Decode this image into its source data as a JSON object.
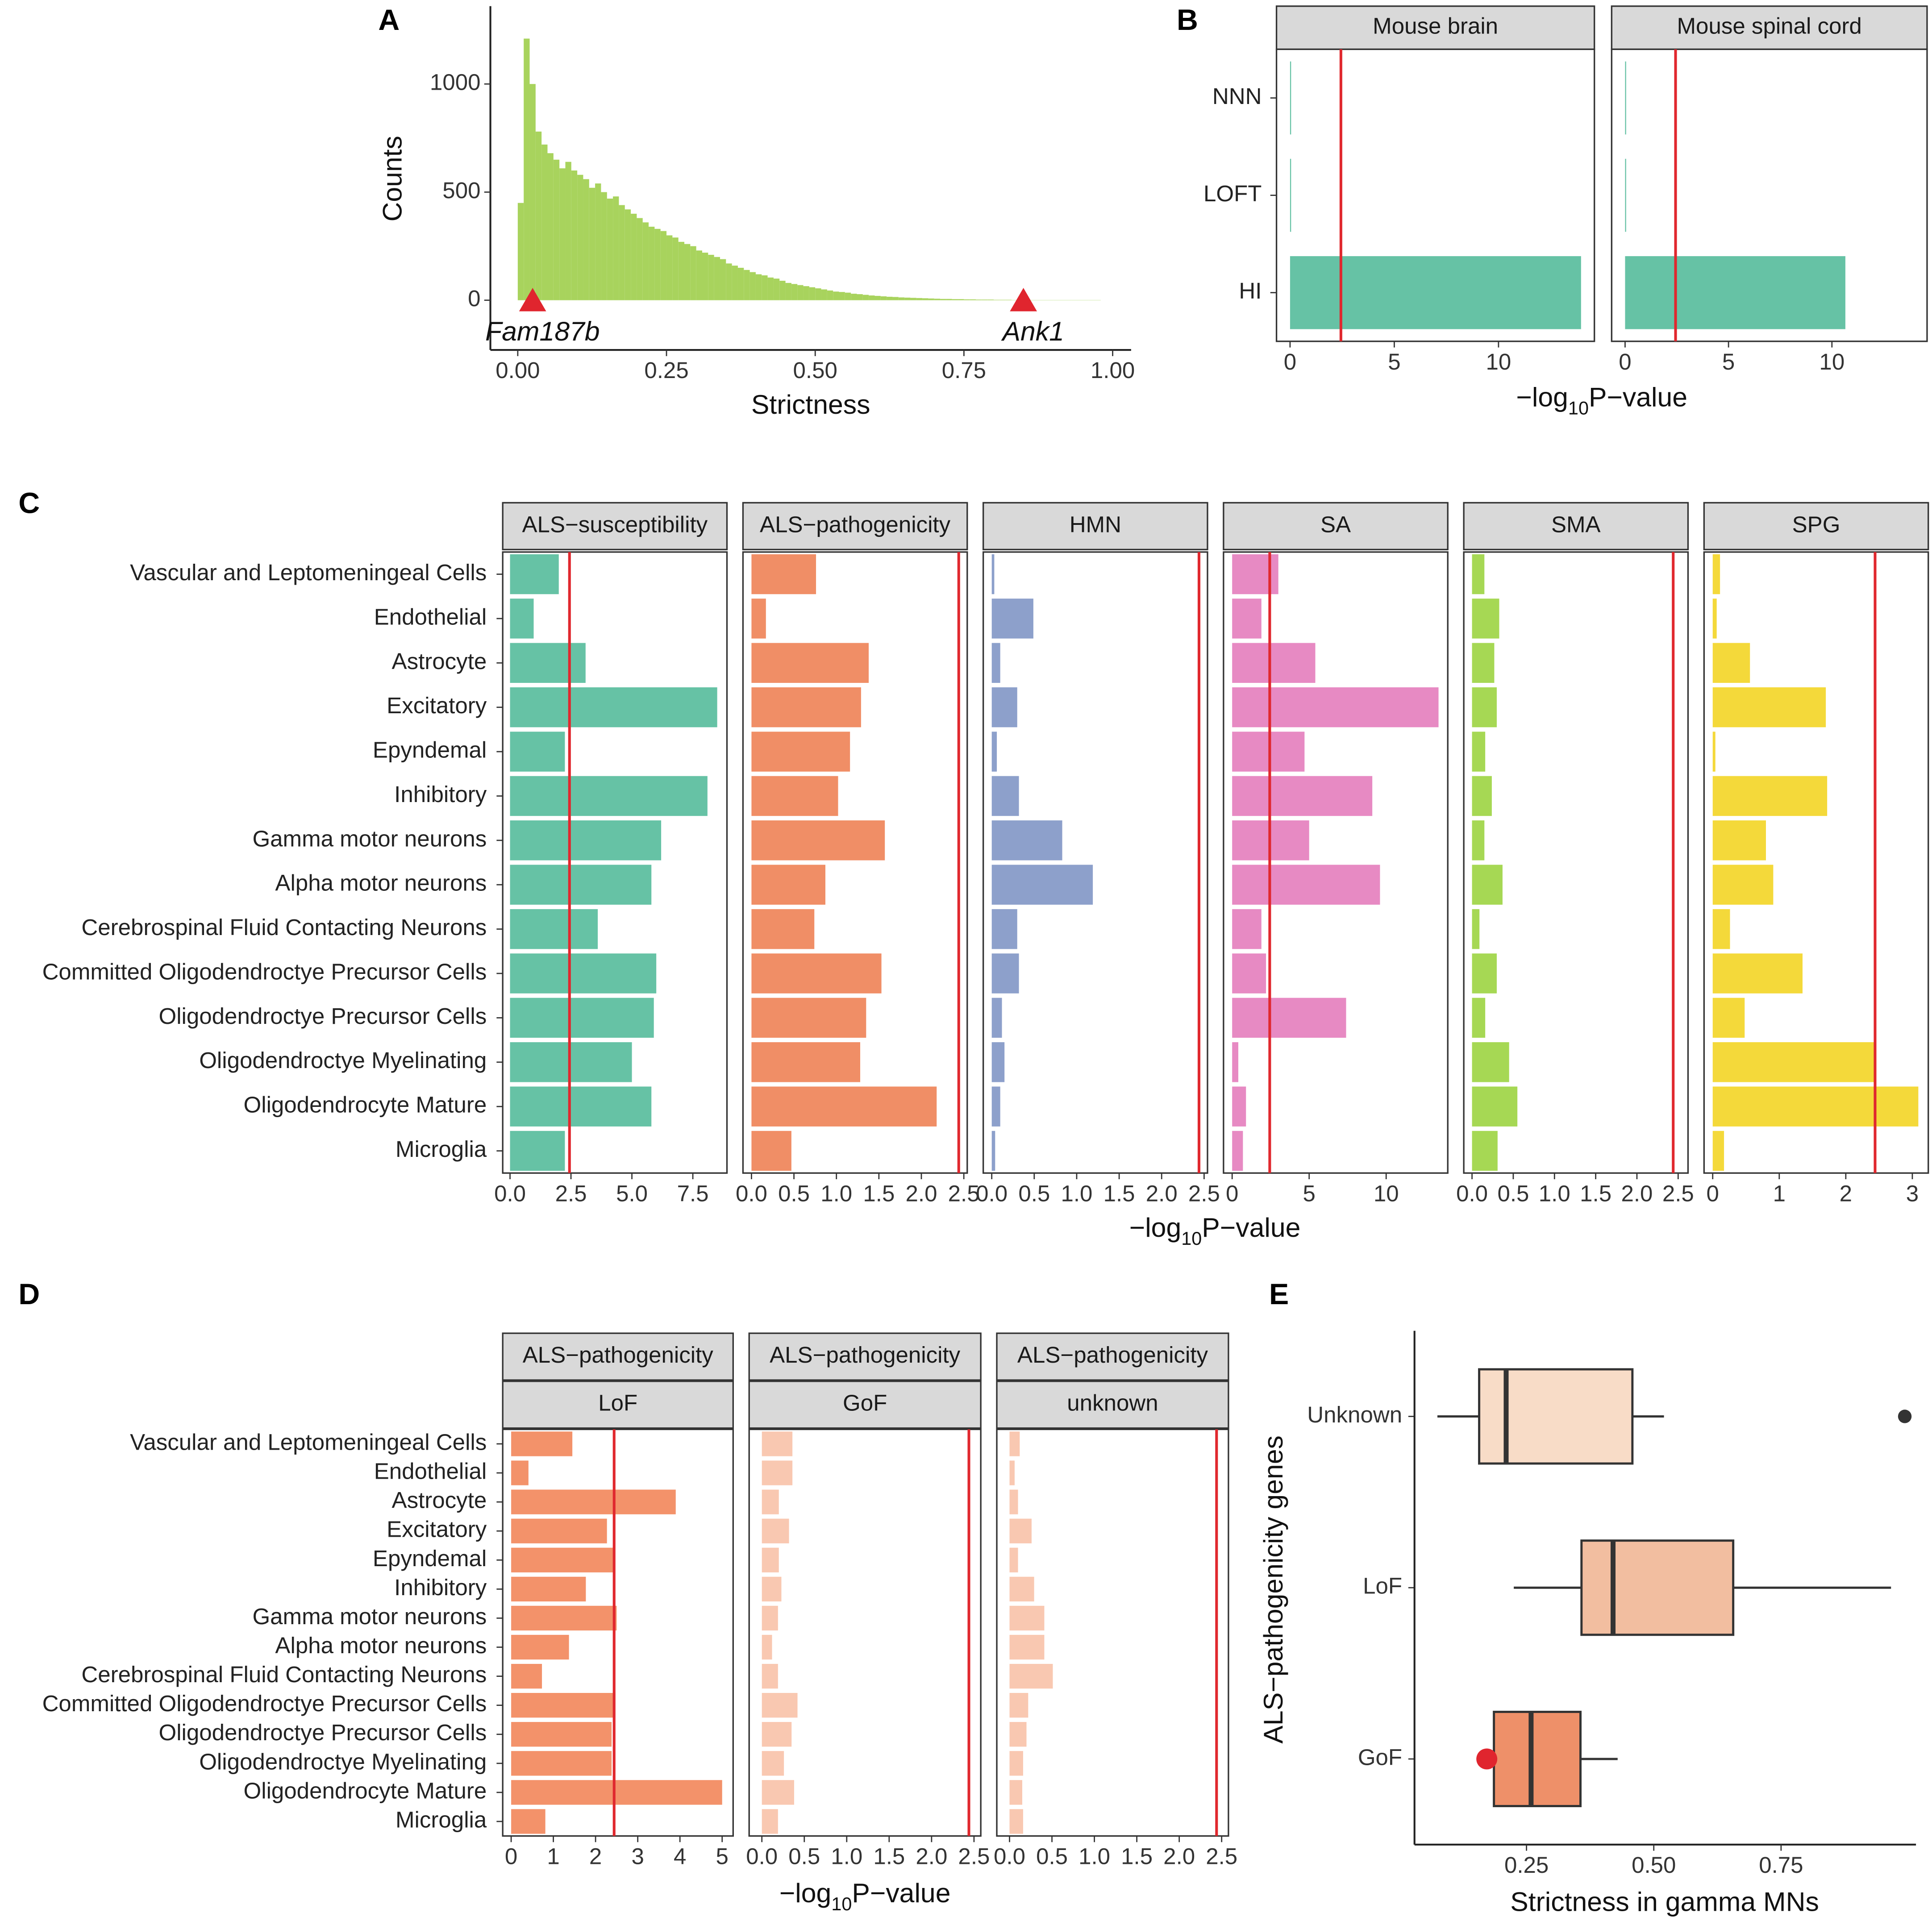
{
  "chart_data": [
    {
      "type": "histogram",
      "panel": "A",
      "xlabel": "Strictness",
      "ylabel": "Counts",
      "color": "#a8d35d",
      "bins": [
        0,
        0.01,
        0.02,
        0.03,
        0.04,
        0.05,
        0.06,
        0.07,
        0.08,
        0.09,
        0.1,
        0.11,
        0.12,
        0.13,
        0.14,
        0.15,
        0.16,
        0.17,
        0.18,
        0.19,
        0.2,
        0.21,
        0.22,
        0.23,
        0.24,
        0.25,
        0.26,
        0.27,
        0.28,
        0.29,
        0.3,
        0.31,
        0.32,
        0.33,
        0.34,
        0.35,
        0.36,
        0.37,
        0.38,
        0.39,
        0.4,
        0.41,
        0.42,
        0.43,
        0.44,
        0.45,
        0.46,
        0.47,
        0.48,
        0.49,
        0.5,
        0.51,
        0.52,
        0.53,
        0.54,
        0.55,
        0.56,
        0.57,
        0.58,
        0.59,
        0.6,
        0.61,
        0.62,
        0.63,
        0.64,
        0.65,
        0.66,
        0.67,
        0.68,
        0.69,
        0.7,
        0.71,
        0.72,
        0.73,
        0.74,
        0.75,
        0.76,
        0.77,
        0.78,
        0.79,
        0.8,
        0.81,
        0.82,
        0.83,
        0.84,
        0.85,
        0.86,
        0.87,
        0.88,
        0.89,
        0.9,
        0.91,
        0.92,
        0.93,
        0.94,
        0.95,
        0.96,
        0.97,
        0.98
      ],
      "counts": [
        450,
        1210,
        1000,
        780,
        720,
        680,
        650,
        610,
        640,
        600,
        580,
        560,
        520,
        540,
        500,
        470,
        480,
        440,
        420,
        400,
        380,
        360,
        340,
        330,
        320,
        300,
        290,
        270,
        260,
        250,
        230,
        220,
        210,
        200,
        190,
        170,
        160,
        150,
        140,
        130,
        120,
        115,
        105,
        100,
        90,
        80,
        75,
        70,
        65,
        60,
        55,
        50,
        45,
        40,
        38,
        35,
        30,
        28,
        25,
        22,
        20,
        18,
        16,
        15,
        13,
        12,
        11,
        10,
        9,
        8,
        7,
        6,
        6,
        5,
        5,
        4,
        4,
        3,
        3,
        3,
        2,
        2,
        2,
        1,
        1,
        1,
        1,
        1,
        1,
        1,
        1,
        1,
        1,
        1,
        1,
        1,
        1,
        1
      ],
      "xlim": [
        -0.046,
        1.031
      ],
      "ylim": [
        -230,
        1360
      ],
      "xticks": [
        {
          "value": 0,
          "label": "0.00"
        },
        {
          "value": 0.25,
          "label": "0.25"
        },
        {
          "value": 0.5,
          "label": "0.50"
        },
        {
          "value": 0.75,
          "label": "0.75"
        },
        {
          "value": 1,
          "label": "1.00"
        }
      ],
      "yticks": [
        0,
        500,
        1000
      ],
      "markers": [
        {
          "label": "Fam187b",
          "x": 0.025
        },
        {
          "label": "Ank1",
          "x": 0.85
        }
      ],
      "marker_color": "#e0252e"
    },
    {
      "type": "bar",
      "panel": "B",
      "categories": [
        "NNN",
        "LOFT",
        "HI"
      ],
      "threshold": 2.44,
      "threshold_color": "#e0282e",
      "xlabel": {
        "pre": "−log",
        "sub": "10",
        "post": "P−value"
      },
      "xlim": [
        -0.65,
        14.6
      ],
      "xticks": [
        0,
        5,
        10
      ],
      "facets": [
        {
          "name": "Mouse brain",
          "color": "#66c2a5",
          "values": [
            0.05,
            0.05,
            13.96
          ]
        },
        {
          "name": "Mouse spinal cord",
          "color": "#66c2a5",
          "values": [
            0.05,
            0.05,
            10.65
          ]
        }
      ]
    },
    {
      "type": "bar",
      "panel": "C",
      "threshold": 2.44,
      "threshold_color": "#e0282e",
      "categories": [
        "Vascular and Leptomeningeal Cells",
        "Endothelial",
        "Astrocyte",
        "Excitatory",
        "Epyndemal",
        "Inhibitory",
        "Gamma motor neurons",
        "Alpha motor neurons",
        "Cerebrospinal Fluid Contacting Neurons",
        "Committed Oligodendroctye Precursor Cells",
        "Oligodendroctye Precursor Cells",
        "Oligodendroctye Myelinating",
        "Oligodendrocyte Mature",
        "Microglia"
      ],
      "xlabel": {
        "pre": "−log",
        "sub": "10",
        "post": "P−value"
      },
      "facets": [
        {
          "name": "ALS−susceptibility",
          "color": "#66c2a5",
          "xlim": [
            -0.3,
            8.9
          ],
          "xticks": [
            {
              "value": 0,
              "label": "0.0"
            },
            2.5,
            {
              "value": 5,
              "label": "5.0"
            },
            7.5
          ],
          "values": [
            2.0,
            0.97,
            3.1,
            8.5,
            2.25,
            8.1,
            6.2,
            5.8,
            3.6,
            6.0,
            5.9,
            5.0,
            5.8,
            2.25
          ]
        },
        {
          "name": "ALS−pathogenicity",
          "color": "#f08e66",
          "xlim": [
            -0.1,
            2.54
          ],
          "xticks": [
            {
              "value": 0,
              "label": "0.0"
            },
            0.5,
            {
              "value": 1,
              "label": "1.0"
            },
            1.5,
            {
              "value": 2,
              "label": "2.0"
            },
            2.5
          ],
          "values": [
            0.76,
            0.17,
            1.38,
            1.29,
            1.16,
            1.02,
            1.57,
            0.87,
            0.74,
            1.53,
            1.35,
            1.28,
            2.18,
            0.47
          ]
        },
        {
          "name": "HMN",
          "color": "#8da0cb",
          "xlim": [
            -0.1,
            2.54
          ],
          "xticks": [
            {
              "value": 0,
              "label": "0.0"
            },
            0.5,
            {
              "value": 1,
              "label": "1.0"
            },
            1.5,
            {
              "value": 2,
              "label": "2.0"
            },
            2.5
          ],
          "values": [
            0.03,
            0.49,
            0.1,
            0.3,
            0.06,
            0.32,
            0.83,
            1.19,
            0.3,
            0.32,
            0.12,
            0.15,
            0.1,
            0.04
          ]
        },
        {
          "name": "SA",
          "color": "#e78ac3",
          "xlim": [
            -0.56,
            14.0
          ],
          "xticks": [
            0,
            5,
            10
          ],
          "values": [
            3.0,
            1.9,
            5.4,
            13.4,
            4.7,
            9.1,
            5.0,
            9.6,
            1.9,
            2.2,
            7.4,
            0.4,
            0.9,
            0.7
          ]
        },
        {
          "name": "SMA",
          "color": "#a6d854",
          "xlim": [
            -0.1,
            2.62
          ],
          "xticks": [
            {
              "value": 0,
              "label": "0.0"
            },
            0.5,
            {
              "value": 1,
              "label": "1.0"
            },
            1.5,
            {
              "value": 2,
              "label": "2.0"
            },
            2.5
          ],
          "values": [
            0.15,
            0.33,
            0.27,
            0.3,
            0.16,
            0.24,
            0.15,
            0.37,
            0.09,
            0.3,
            0.16,
            0.45,
            0.55,
            0.31
          ]
        },
        {
          "name": "SPG",
          "color": "#f4d93a",
          "xlim": [
            -0.13,
            3.24
          ],
          "xticks": [
            0,
            1,
            2,
            3
          ],
          "values": [
            0.11,
            0.06,
            0.56,
            1.7,
            0.04,
            1.72,
            0.8,
            0.91,
            0.26,
            1.35,
            0.48,
            2.44,
            3.09,
            0.17
          ]
        }
      ]
    },
    {
      "type": "bar",
      "panel": "D",
      "threshold": 2.44,
      "threshold_color": "#e0282e",
      "categories": [
        "Vascular and Leptomeningeal Cells",
        "Endothelial",
        "Astrocyte",
        "Excitatory",
        "Epyndemal",
        "Inhibitory",
        "Gamma motor neurons",
        "Alpha motor neurons",
        "Cerebrospinal Fluid Contacting Neurons",
        "Committed Oligodendroctye Precursor Cells",
        "Oligodendroctye Precursor Cells",
        "Oligodendroctye Myelinating",
        "Oligodendrocyte Mature",
        "Microglia"
      ],
      "xlabel": {
        "pre": "−log",
        "sub": "10",
        "post": "P−value"
      },
      "facets": [
        {
          "strip": "ALS−pathogenicity",
          "name": "LoF",
          "color": "#f3926a",
          "xlim": [
            -0.2,
            5.26
          ],
          "xticks": [
            0,
            1,
            2,
            3,
            4,
            5
          ],
          "values": [
            1.45,
            0.41,
            3.9,
            2.27,
            2.44,
            1.77,
            2.5,
            1.37,
            0.73,
            2.47,
            2.38,
            2.38,
            5.0,
            0.81
          ]
        },
        {
          "strip": "ALS−pathogenicity",
          "name": "GoF",
          "color": "#f9c8b1",
          "xlim": [
            -0.15,
            2.58
          ],
          "xticks": [
            {
              "value": 0,
              "label": "0.0"
            },
            0.5,
            {
              "value": 1,
              "label": "1.0"
            },
            1.5,
            {
              "value": 2,
              "label": "2.0"
            },
            2.5
          ],
          "values": [
            0.36,
            0.36,
            0.2,
            0.32,
            0.2,
            0.23,
            0.19,
            0.12,
            0.19,
            0.42,
            0.35,
            0.26,
            0.38,
            0.19
          ]
        },
        {
          "strip": "ALS−pathogenicity",
          "name": "unknown",
          "color": "#f9c8b1",
          "xlim": [
            -0.15,
            2.58
          ],
          "xticks": [
            {
              "value": 0,
              "label": "0.0"
            },
            0.5,
            {
              "value": 1,
              "label": "1.0"
            },
            1.5,
            {
              "value": 2,
              "label": "2.0"
            },
            2.5
          ],
          "values": [
            0.12,
            0.06,
            0.1,
            0.26,
            0.1,
            0.29,
            0.41,
            0.41,
            0.51,
            0.22,
            0.2,
            0.16,
            0.15,
            0.16
          ]
        }
      ]
    },
    {
      "type": "box",
      "panel": "E",
      "xlabel": "Strictness in gamma MNs",
      "ylabel": "ALS−pathogenicity genes",
      "categories": [
        "Unknown",
        "LoF",
        "GoF"
      ],
      "xlim": [
        0.03,
        1.015
      ],
      "xticks": [
        {
          "value": 0.25,
          "label": "0.25"
        },
        {
          "value": 0.5,
          "label": "0.50"
        },
        {
          "value": 0.75,
          "label": "0.75"
        }
      ],
      "boxes": [
        {
          "color": "#f8dcc7",
          "min": 0.075,
          "q1": 0.157,
          "median": 0.21,
          "q3": 0.458,
          "max": 0.52,
          "outliers": [
            0.993
          ]
        },
        {
          "color": "#f2bea0",
          "min": 0.225,
          "q1": 0.358,
          "median": 0.42,
          "q3": 0.656,
          "max": 0.966,
          "outliers": []
        },
        {
          "color": "#ee9069",
          "min": 0.186,
          "q1": 0.186,
          "median": 0.259,
          "q3": 0.356,
          "max": 0.429,
          "outliers": [],
          "highlight": 0.172
        }
      ],
      "highlight_color": "#e0252e"
    }
  ]
}
